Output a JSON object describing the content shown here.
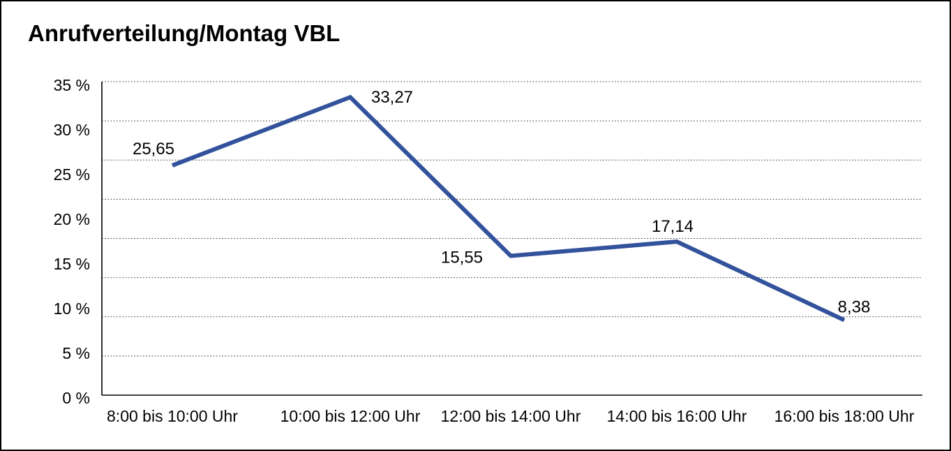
{
  "window": {
    "background_color": "#ffffff",
    "border_color": "#000000"
  },
  "chart_data": {
    "type": "line",
    "title": "Anrufverteilung/Montag VBL",
    "categories": [
      "8:00 bis 10:00 Uhr",
      "10:00 bis 12:00 Uhr",
      "12:00 bis 14:00 Uhr",
      "14:00 bis 16:00 Uhr",
      "16:00 bis 18:00 Uhr"
    ],
    "series": [
      {
        "name": "Anrufverteilung Montag VBL",
        "values": [
          25.65,
          33.27,
          15.55,
          17.14,
          8.38
        ],
        "point_labels": [
          "25,65",
          "33,27",
          "15,55",
          "17,14",
          "8,38"
        ]
      }
    ],
    "xlabel": "",
    "ylabel": "",
    "ylim": [
      0,
      35
    ],
    "y_tick_step": 5,
    "y_tick_labels": [
      "35 %",
      "30 %",
      "25 %",
      "20 %",
      "15 %",
      "10 %",
      "5 %",
      "0 %"
    ],
    "grid": "horizontal-dotted",
    "gridline_levels": 9,
    "legend_position": "none",
    "line_color": "#33529C",
    "grid_color": "#333333",
    "axis_color": "#000000",
    "text_color": "#000000"
  }
}
